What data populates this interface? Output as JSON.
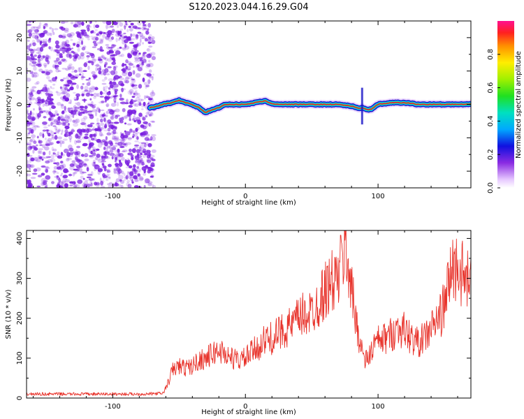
{
  "title": "S120.2023.044.16.29.G04",
  "colors": {
    "snr_line": "#e8332b",
    "axis": "#000000",
    "noise_dots": "#7a1fe0",
    "track_outer": "#1a16c8",
    "track_core": "#e8202a"
  },
  "chart_data": [
    {
      "type": "heatmap",
      "xlabel": "Height of straight line (km)",
      "ylabel": "Frequency (Hz)",
      "xlim": [
        -165,
        170
      ],
      "ylim": [
        -25,
        25
      ],
      "xticks": [
        -100,
        0,
        100
      ],
      "xtick_labels": [
        "-100",
        "0",
        "100"
      ],
      "yticks": [
        -20,
        -10,
        0,
        10,
        20
      ],
      "ytick_labels": [
        "-20",
        "-10",
        "0",
        "10",
        "20"
      ],
      "noise_region_x": [
        -165,
        -72
      ],
      "track": {
        "x": [
          -72,
          -66,
          -60,
          -55,
          -50,
          -45,
          -40,
          -35,
          -30,
          -25,
          -20,
          -15,
          -10,
          -5,
          0,
          5,
          10,
          15,
          20,
          30,
          40,
          50,
          60,
          70,
          80,
          85,
          88,
          92,
          95,
          100,
          110,
          120,
          125,
          130,
          140,
          150,
          160,
          170
        ],
        "freq_hz": [
          -1.0,
          -0.5,
          0.2,
          0.5,
          1.2,
          0.5,
          0.0,
          -1.0,
          -2.5,
          -1.5,
          -1.0,
          0.0,
          0.0,
          0.0,
          0.0,
          0.3,
          0.8,
          1.0,
          0.2,
          0.0,
          0.0,
          0.0,
          0.0,
          0.0,
          -0.5,
          -1.2,
          -1.0,
          -1.5,
          -1.5,
          0.0,
          0.5,
          0.5,
          0.3,
          0.0,
          0.0,
          0.0,
          0.0,
          0.0
        ]
      },
      "colorbar": {
        "label": "Normalized spectral amplitude",
        "range": [
          0.0,
          1.0
        ],
        "ticks": [
          0.0,
          0.2,
          0.4,
          0.6,
          0.8
        ],
        "tick_labels": [
          "0.0",
          "0.2",
          "0.4",
          "0.6",
          "0.8"
        ]
      }
    },
    {
      "type": "line",
      "xlabel": "Height of straight line (km)",
      "ylabel": "SNR (10 * v/v)",
      "xlim": [
        -165,
        170
      ],
      "ylim": [
        0,
        420
      ],
      "xticks": [
        -100,
        0,
        100
      ],
      "xtick_labels": [
        "-100",
        "0",
        "100"
      ],
      "yticks": [
        0,
        100,
        200,
        300,
        400
      ],
      "ytick_labels": [
        "0",
        "100",
        "200",
        "300",
        "400"
      ],
      "series": [
        {
          "x": [
            -165,
            -150,
            -135,
            -120,
            -105,
            -90,
            -75,
            -62,
            -58,
            -55,
            -50,
            -45,
            -40,
            -35,
            -30,
            -25,
            -20,
            -15,
            -10,
            -5,
            0,
            5,
            10,
            15,
            20,
            25,
            30,
            35,
            40,
            45,
            50,
            55,
            60,
            65,
            70,
            75,
            78,
            82,
            86,
            90,
            94,
            98,
            102,
            106,
            110,
            115,
            120,
            125,
            130,
            135,
            140,
            145,
            150,
            155,
            160,
            165,
            170
          ],
          "y": [
            10,
            10,
            10,
            10,
            10,
            10,
            10,
            12,
            40,
            70,
            80,
            75,
            80,
            95,
            100,
            110,
            120,
            110,
            100,
            95,
            100,
            115,
            130,
            145,
            150,
            160,
            175,
            180,
            200,
            210,
            215,
            240,
            270,
            290,
            300,
            380,
            330,
            220,
            150,
            90,
            110,
            140,
            145,
            150,
            160,
            175,
            170,
            150,
            140,
            150,
            175,
            195,
            230,
            320,
            330,
            300,
            280
          ]
        }
      ]
    }
  ]
}
